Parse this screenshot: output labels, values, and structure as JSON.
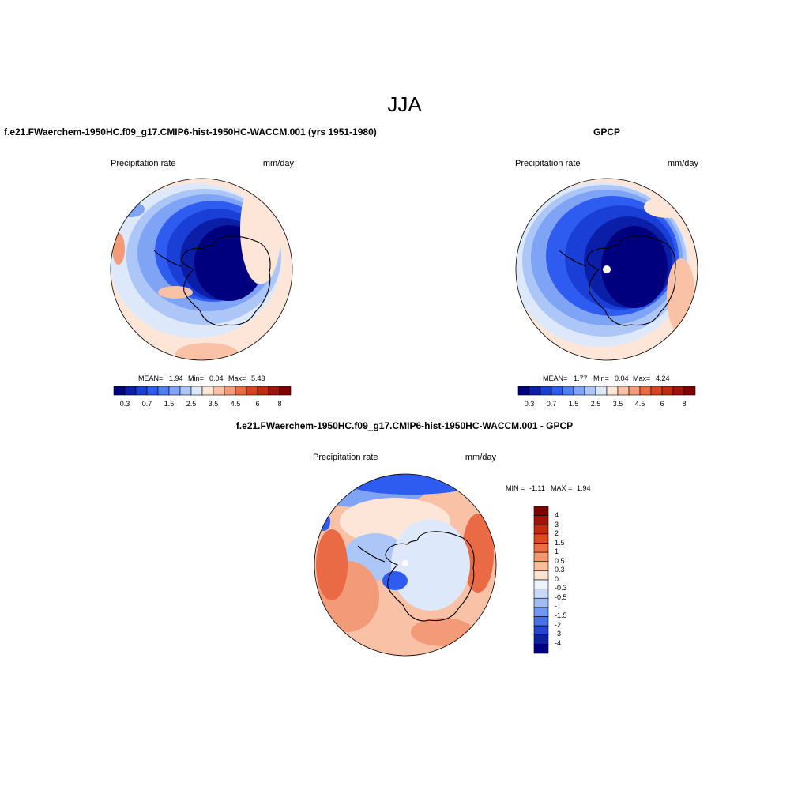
{
  "page_title": "JJA",
  "panels": [
    {
      "title": "f.e21.FWaerchem-1950HC.f09_g17.CMIP6-hist-1950HC-WACCM.001 (yrs 1951-1980)",
      "variable_label": "Precipitation rate",
      "units": "mm/day",
      "stats": {
        "mean_label": "MEAN=",
        "mean": "1.94",
        "min_label": "Min=",
        "min": "0.04",
        "max_label": "Max=",
        "max": "5.43"
      }
    },
    {
      "title": "GPCP",
      "variable_label": "Precipitation rate",
      "units": "mm/day",
      "stats": {
        "mean_label": "MEAN=",
        "mean": "1.77",
        "min_label": "Min=",
        "min": "0.04",
        "max_label": "Max=",
        "max": "4.24"
      }
    },
    {
      "title": "f.e21.FWaerchem-1950HC.f09_g17.CMIP6-hist-1950HC-WACCM.001 - GPCP",
      "variable_label": "Precipitation rate",
      "units": "mm/day",
      "minmax": {
        "min_label": "MIN =",
        "min": "-1.11",
        "max_label": "MAX =",
        "max": "1.94"
      }
    }
  ],
  "colorbar_top": {
    "orientation": "horizontal",
    "tick_labels": [
      "0.3",
      "0.7",
      "1.5",
      "2.5",
      "3.5",
      "4.5",
      "6",
      "8"
    ],
    "colors": [
      "#00007f",
      "#0a1ea8",
      "#1a3fd6",
      "#2e5cf0",
      "#4f7ff2",
      "#7fa3f5",
      "#adc6f8",
      "#dde9fb",
      "#fde6d8",
      "#f9c1a5",
      "#f39a78",
      "#ea6a45",
      "#db4420",
      "#c42a0f",
      "#a2140a",
      "#7f0000"
    ]
  },
  "colorbar_diff": {
    "orientation": "vertical",
    "tick_labels": [
      "4",
      "3",
      "2",
      "1.5",
      "1",
      "0.5",
      "0.3",
      "0",
      "-0.3",
      "-0.5",
      "-1",
      "-1.5",
      "-2",
      "-3",
      "-4"
    ],
    "colors": [
      "#7f0000",
      "#a2140a",
      "#c42a0f",
      "#e04a22",
      "#ee6e45",
      "#f4976f",
      "#f9bd9c",
      "#fde3d2",
      "#eef4fd",
      "#c9daf8",
      "#9fbcf5",
      "#7098f2",
      "#4670ea",
      "#2544d0",
      "#0c22a3",
      "#00007f"
    ]
  },
  "map_colors": {
    "deep": "#00007f",
    "dark": "#0a1ea8",
    "mid": "#1a3fd6",
    "blue": "#2e5cf0",
    "light": "#7fa3f5",
    "pale": "#adc6f8",
    "paler": "#dde9fb",
    "peach": "#fde6d8",
    "salmon": "#f9c1a5",
    "orange": "#f39a78",
    "red": "#ea6a45",
    "deepred": "#c42a0f"
  }
}
